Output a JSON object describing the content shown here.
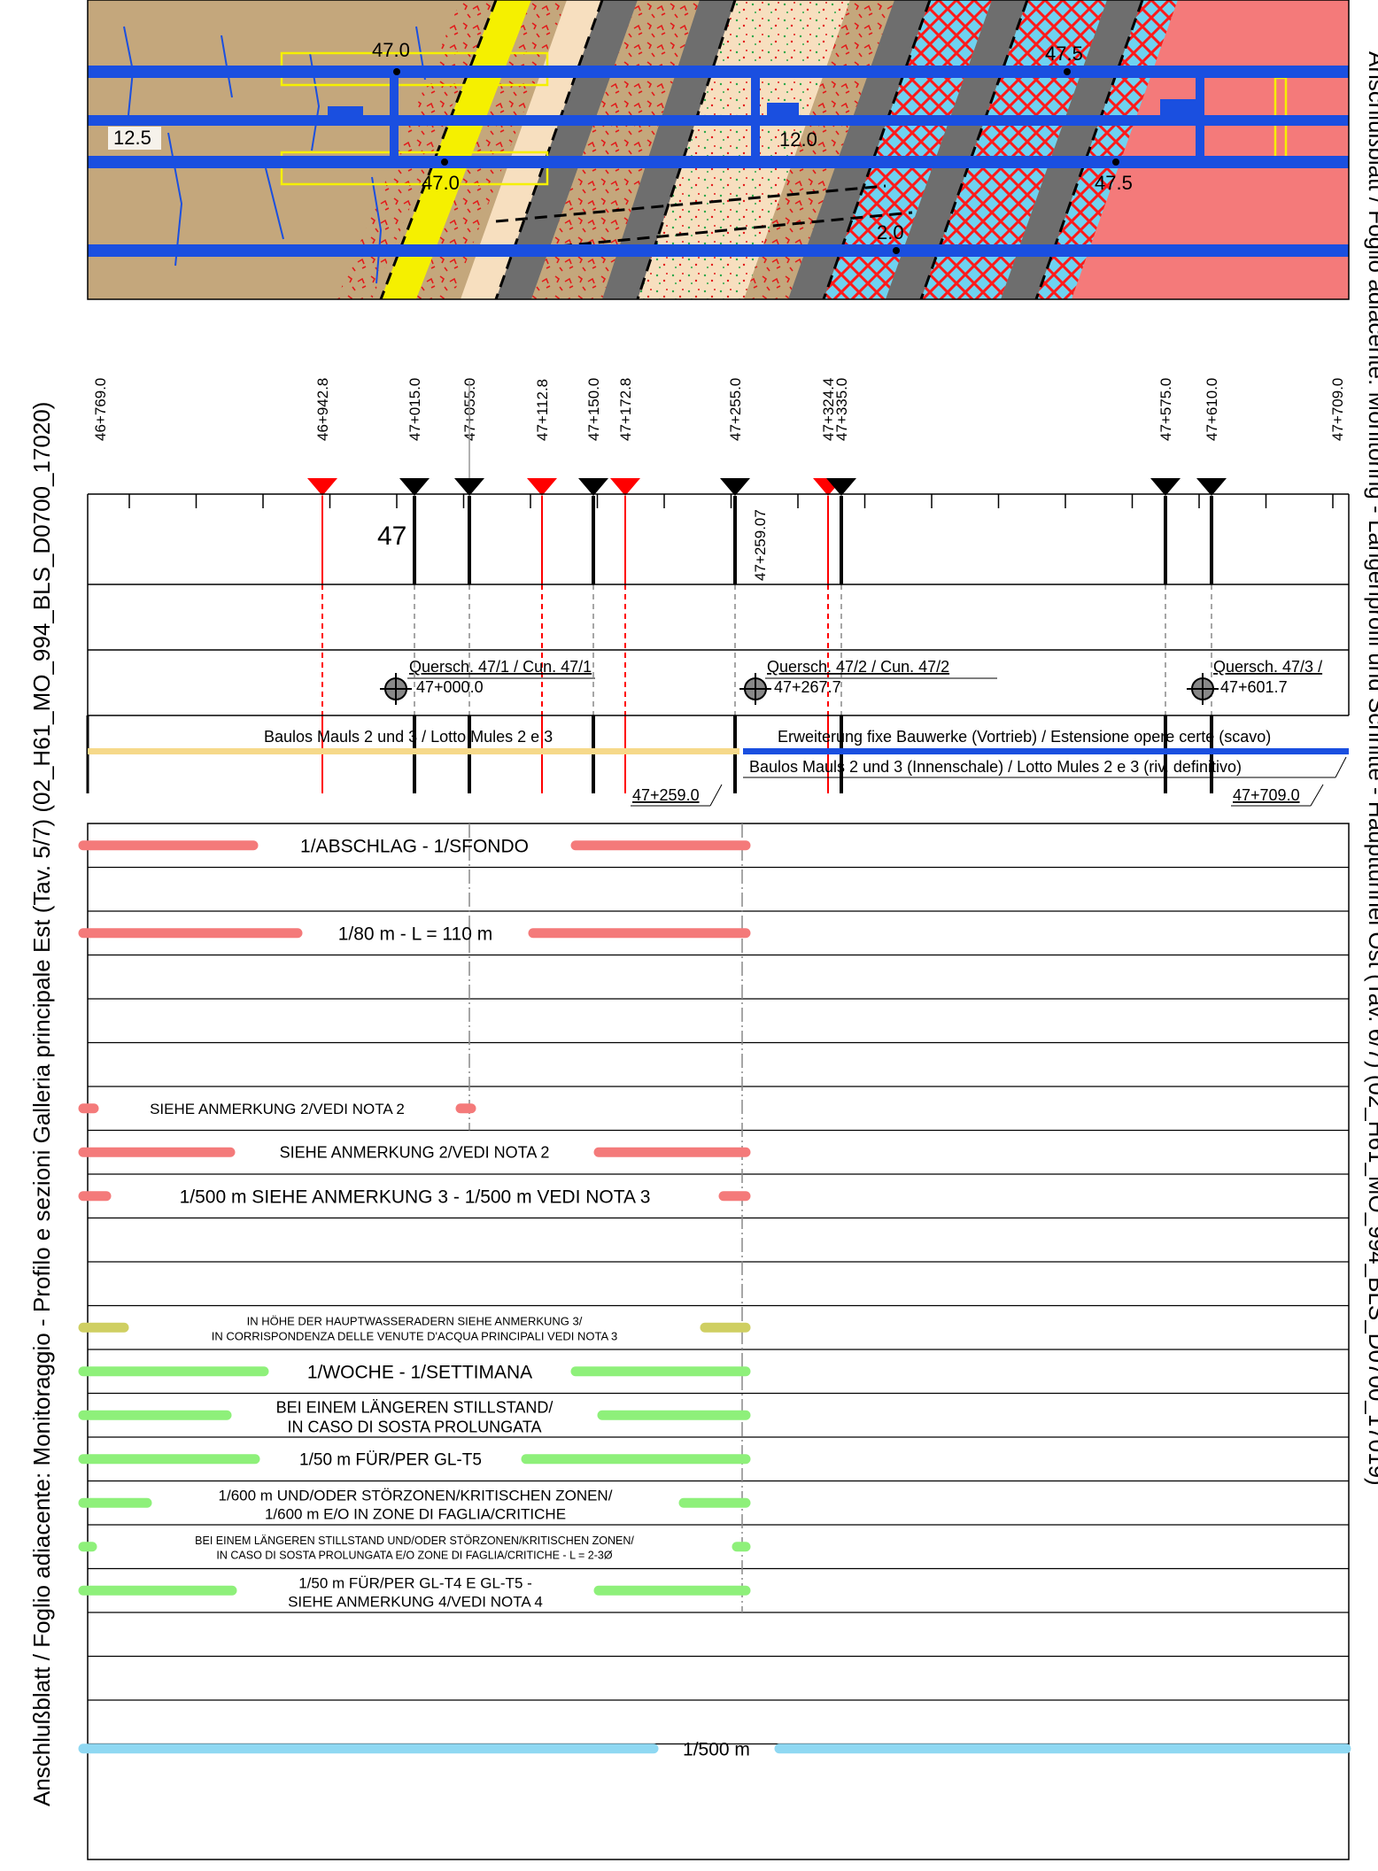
{
  "left_title": "Anschlußblatt / Foglio adiacente: Monitoraggio - Profilo e sezioni Galleria principale Est (Tav. 5/7) (02_H61_MO_994_BLS_D0700_17020)",
  "right_title": "Anschlußblatt / Foglio adiacente: Monitoring - Längenprofil und Schnitte - Haupttunnel Ost (Tav. 6/7) (02_H61_MO_994_BLS_D0700_17019)",
  "geology_labels": {
    "left_edge": "12.5",
    "top_a": "47.0",
    "mid_a": "47.0",
    "center": "12.0",
    "top_b": "47.5",
    "right_b": "47.5",
    "bottom": "2.0"
  },
  "stations": [
    {
      "label": "46+769.0",
      "marker": "none"
    },
    {
      "label": "46+942.8",
      "marker": "red"
    },
    {
      "label": "47+015.0",
      "marker": "black"
    },
    {
      "label": "47+055.0",
      "marker": "black"
    },
    {
      "label": "47+112.8",
      "marker": "red"
    },
    {
      "label": "47+150.0",
      "marker": "black"
    },
    {
      "label": "47+172.8",
      "marker": "red"
    },
    {
      "label": "47+255.0",
      "marker": "black"
    },
    {
      "label": "47+324.4",
      "marker": "red"
    },
    {
      "label": "47+335.0",
      "marker": "black"
    },
    {
      "label": "47+575.0",
      "marker": "black"
    },
    {
      "label": "47+610.0",
      "marker": "black"
    },
    {
      "label": "47+709.0",
      "marker": "none"
    }
  ],
  "km_label": "47",
  "station_extra": "47+259.07",
  "cross_passages": [
    {
      "name": "Quersch. 47/1 / Cun. 47/1",
      "km": "47+000.0"
    },
    {
      "name": "Quersch. 47/2 / Cun. 47/2",
      "km": "47+267.7"
    },
    {
      "name": "Quersch. 47/3 /",
      "km": "47+601.7"
    }
  ],
  "lots": {
    "lot_left": "Baulos Mauls 2 und 3 / Lotto Mules 2 e 3",
    "lot_right_upper": "Erweiterung fixe Bauwerke (Vortrieb) / Estensione opere certe (scavo)",
    "lot_right_lower": "Baulos Mauls 2 und 3 (Innenschale) / Lotto Mules 2 e 3 (riv. definitivo)",
    "km_a": "47+259.0",
    "km_b": "47+709.0"
  },
  "monitoring_rows": [
    {
      "line1": "1/ABSCHLAG - 1/SFONDO",
      "line2": ""
    },
    {
      "line1": "",
      "line2": ""
    },
    {
      "line1": "1/80 m - L = 110 m",
      "line2": ""
    },
    {
      "line1": "",
      "line2": ""
    },
    {
      "line1": "",
      "line2": ""
    },
    {
      "line1": "",
      "line2": ""
    },
    {
      "line1": "SIEHE ANMERKUNG 2/VEDI NOTA 2",
      "line2": ""
    },
    {
      "line1": "SIEHE ANMERKUNG 2/VEDI NOTA 2",
      "line2": ""
    },
    {
      "line1": "1/500 m SIEHE ANMERKUNG 3 - 1/500 m VEDI NOTA 3",
      "line2": ""
    },
    {
      "line1": "",
      "line2": ""
    },
    {
      "line1": "",
      "line2": ""
    },
    {
      "line1": "IN HÖHE DER HAUPTWASSERADERN SIEHE ANMERKUNG 3/",
      "line2": "IN CORRISPONDENZA DELLE VENUTE D'ACQUA PRINCIPALI VEDI NOTA 3"
    },
    {
      "line1": "1/WOCHE - 1/SETTIMANA",
      "line2": ""
    },
    {
      "line1": "BEI EINEM LÄNGEREN STILLSTAND/",
      "line2": "IN CASO DI SOSTA PROLUNGATA"
    },
    {
      "line1": "1/50 m FÜR/PER GL-T5",
      "line2": ""
    },
    {
      "line1": "1/600 m UND/ODER STÖRZONEN/KRITISCHEN ZONEN/",
      "line2": "1/600 m E/O IN ZONE DI FAGLIA/CRITICHE"
    },
    {
      "line1": "BEI EINEM LÄNGEREN STILLSTAND UND/ODER STÖRZONEN/KRITISCHEN ZONEN/",
      "line2": "IN CASO DI SOSTA PROLUNGATA E/O ZONE DI FAGLIA/CRITICHE - L = 2-3Ø"
    },
    {
      "line1": "1/50 m FÜR/PER GL-T4 E GL-T5 -",
      "line2": "SIEHE ANMERKUNG 4/VEDI NOTA 4"
    },
    {
      "line1": "",
      "line2": ""
    },
    {
      "line1": "",
      "line2": ""
    },
    {
      "line1": "1/500 m",
      "line2": ""
    },
    {
      "line1": "",
      "line2": ""
    }
  ],
  "colors": {
    "frame": "#000000",
    "tunnel_blue": "#1a4fe0",
    "rock_tan": "#c4a77c",
    "rock_red": "#f47a7a",
    "rock_gray": "#6e6e6e",
    "rock_yellow": "#f5f000",
    "rock_cream": "#f7dfbf",
    "rock_cyan": "#6fd2f0",
    "lot_yellow": "#f6d98a",
    "lot_blue": "#1a4fe0",
    "bar_red": "#f47a7a",
    "bar_olive": "#cfcf62",
    "bar_green": "#8ef07a",
    "bar_cyan": "#8fd8f2",
    "marker_red": "#ff0000",
    "marker_black": "#000000"
  }
}
